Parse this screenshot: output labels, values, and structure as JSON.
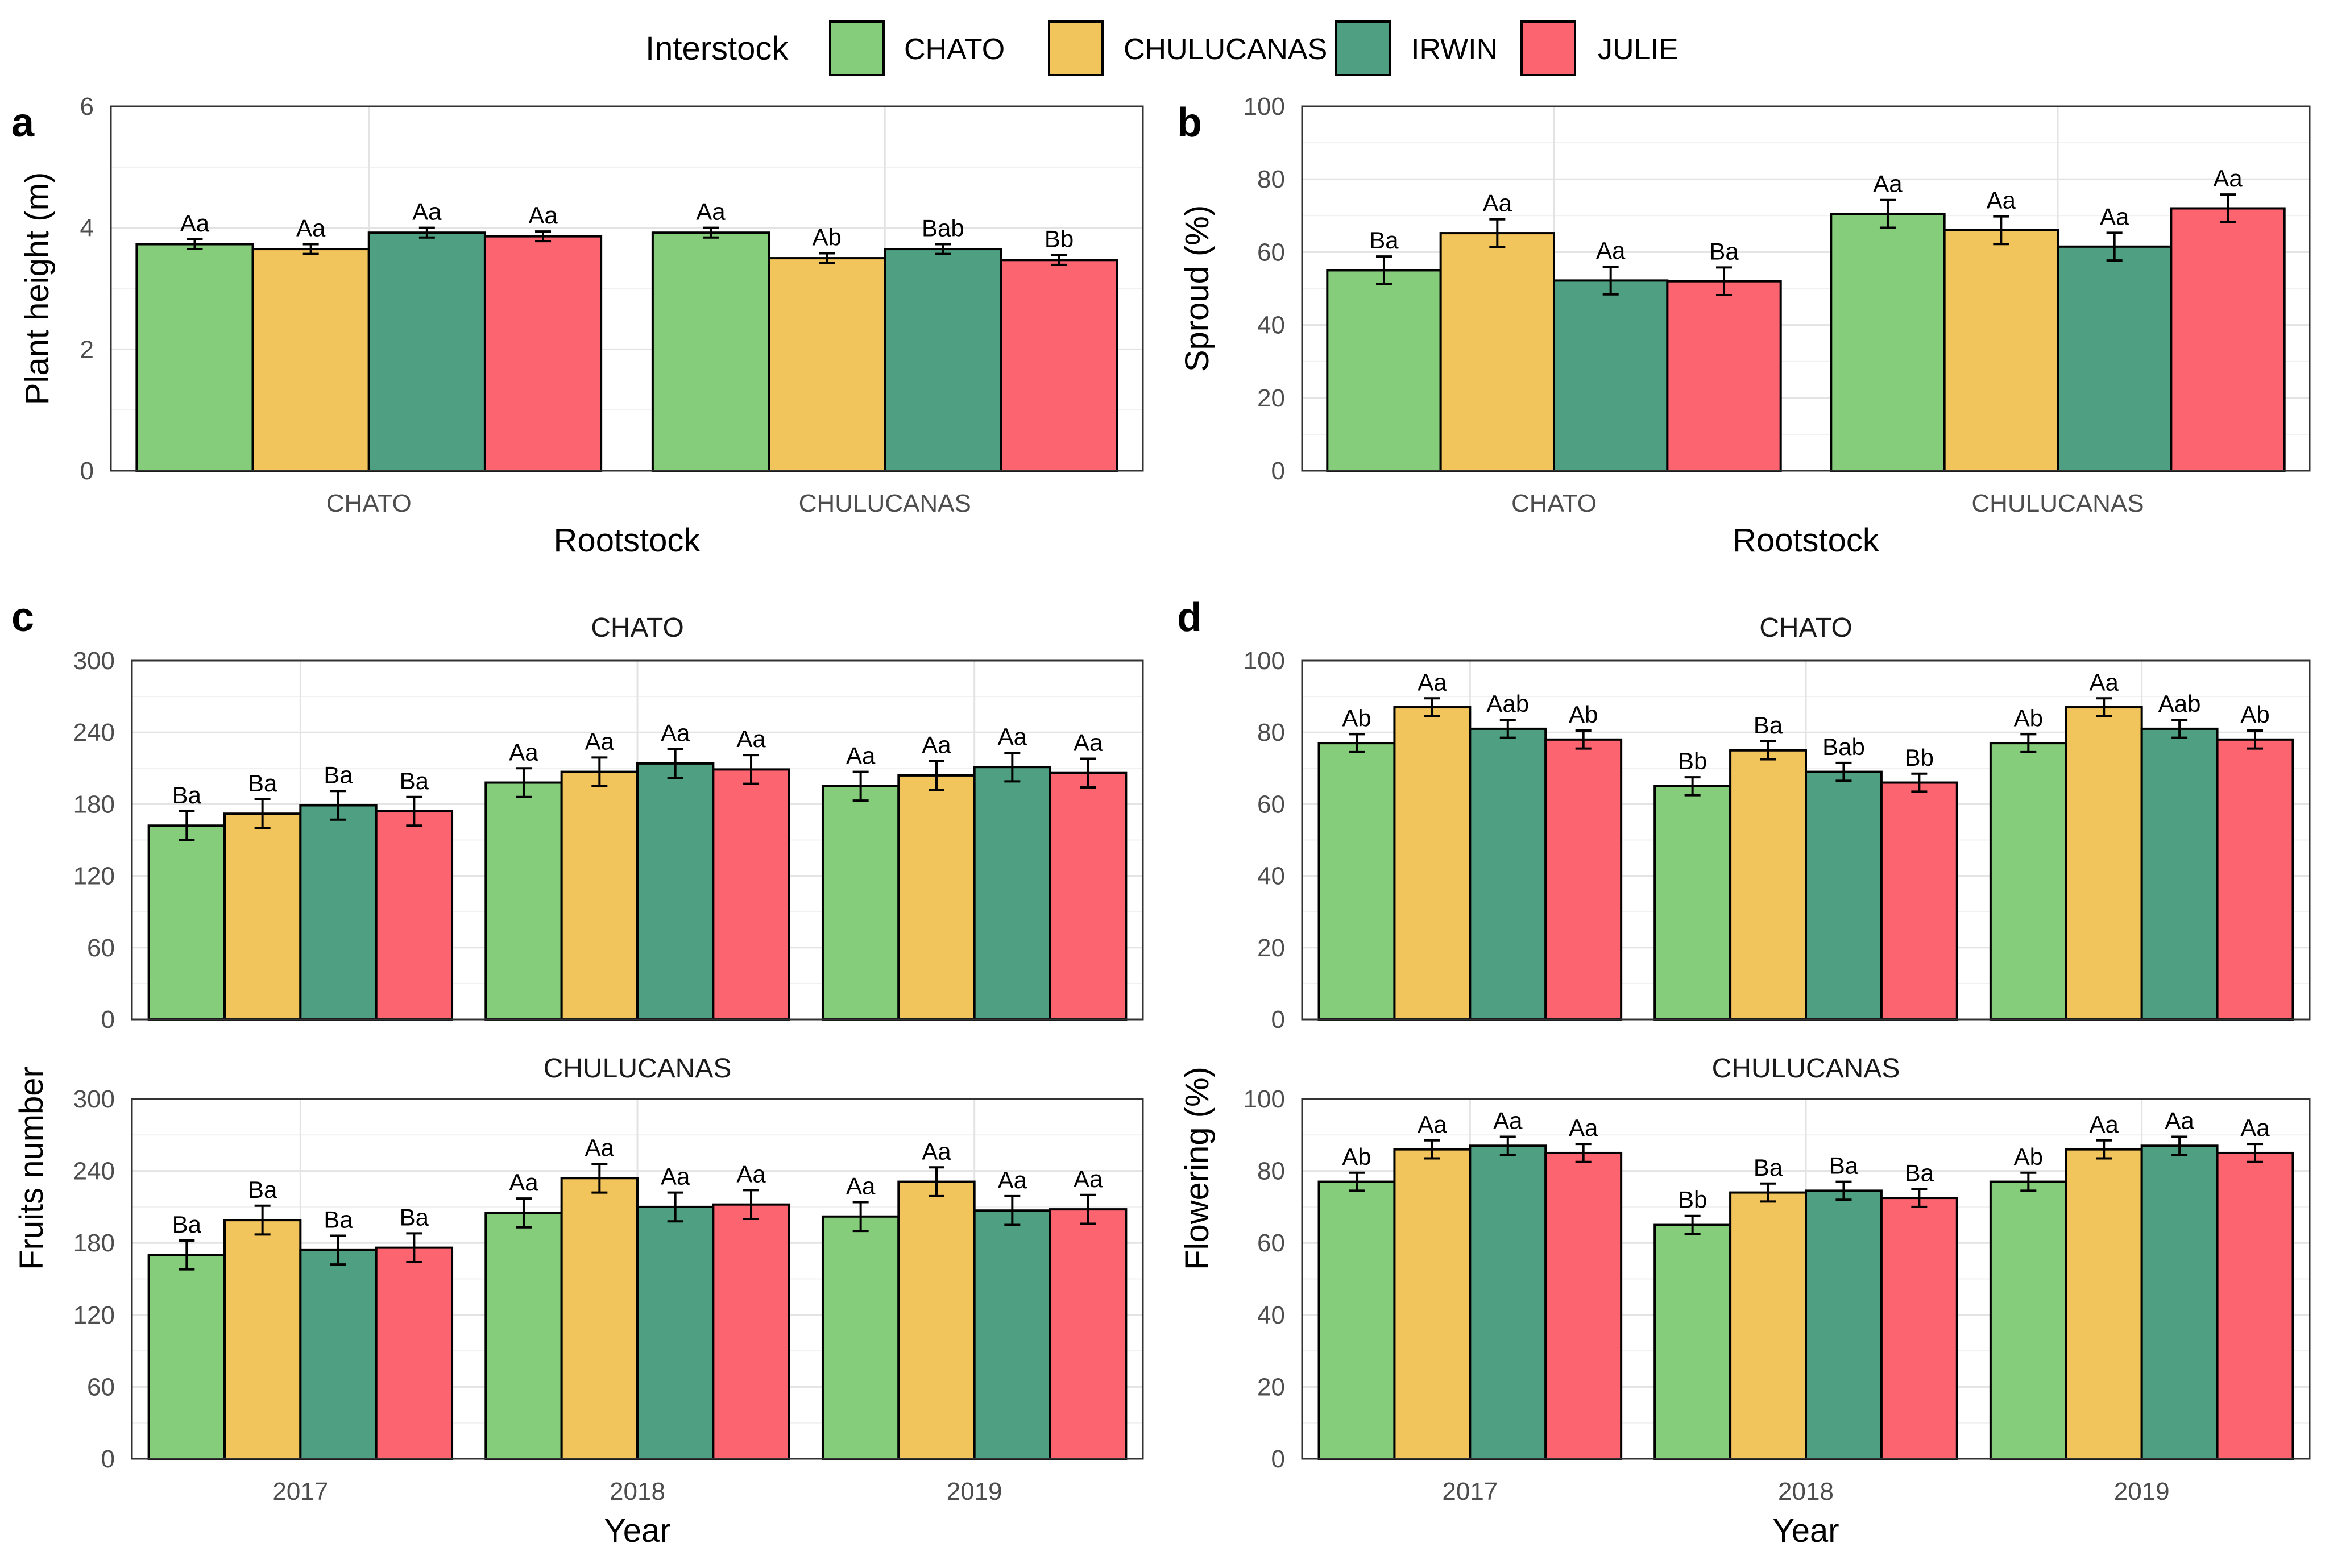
{
  "legend": {
    "title": "Interstock",
    "items": [
      {
        "label": "CHATO",
        "color": "#85CD7A"
      },
      {
        "label": "CHULUCANAS",
        "color": "#F2C45C"
      },
      {
        "label": "IRWIN",
        "color": "#4FA083"
      },
      {
        "label": "JULIE",
        "color": "#FC6470"
      }
    ]
  },
  "chart_data": [
    {
      "id": "a",
      "letter": "a",
      "type": "bar",
      "xlabel": "Rootstock",
      "ylabel": "Plant height (m)",
      "ylim": [
        0,
        6
      ],
      "yticks": [
        0,
        2,
        4,
        6
      ],
      "categories": [
        "CHATO",
        "CHULUCANAS"
      ],
      "series": [
        {
          "name": "CHATO",
          "values": [
            3.73,
            3.92
          ],
          "errors": [
            0.08,
            0.08
          ],
          "labels": [
            "Aa",
            "Aa"
          ]
        },
        {
          "name": "CHULUCANAS",
          "values": [
            3.65,
            3.5
          ],
          "errors": [
            0.08,
            0.08
          ],
          "labels": [
            "Aa",
            "Ab"
          ]
        },
        {
          "name": "IRWIN",
          "values": [
            3.92,
            3.65
          ],
          "errors": [
            0.08,
            0.08
          ],
          "labels": [
            "Aa",
            "Bab"
          ]
        },
        {
          "name": "JULIE",
          "values": [
            3.86,
            3.47
          ],
          "errors": [
            0.08,
            0.08
          ],
          "labels": [
            "Aa",
            "Bb"
          ]
        }
      ]
    },
    {
      "id": "b",
      "letter": "b",
      "type": "bar",
      "xlabel": "Rootstock",
      "ylabel": "Sproud (%)",
      "ylim": [
        0,
        100
      ],
      "yticks": [
        0,
        20,
        40,
        60,
        80,
        100
      ],
      "categories": [
        "CHATO",
        "CHULUCANAS"
      ],
      "series": [
        {
          "name": "CHATO",
          "values": [
            55,
            70.5
          ],
          "errors": [
            3.8,
            3.8
          ],
          "labels": [
            "Ba",
            "Aa"
          ]
        },
        {
          "name": "CHULUCANAS",
          "values": [
            65.2,
            66
          ],
          "errors": [
            3.8,
            3.8
          ],
          "labels": [
            "Aa",
            "Aa"
          ]
        },
        {
          "name": "IRWIN",
          "values": [
            52.2,
            61.5
          ],
          "errors": [
            3.8,
            3.8
          ],
          "labels": [
            "Aa",
            "Aa"
          ]
        },
        {
          "name": "JULIE",
          "values": [
            52,
            72
          ],
          "errors": [
            3.8,
            3.8
          ],
          "labels": [
            "Ba",
            "Aa"
          ]
        }
      ]
    },
    {
      "id": "c1",
      "letter": "c",
      "strip": "CHATO",
      "type": "bar",
      "xlabel": "",
      "ylabel": "Fruits number",
      "ylim": [
        0,
        300
      ],
      "yticks": [
        0,
        60,
        120,
        180,
        240,
        300
      ],
      "categories": [
        "2017",
        "2018",
        "2019"
      ],
      "series": [
        {
          "name": "CHATO",
          "values": [
            162,
            198,
            195
          ],
          "errors": [
            12,
            12,
            12
          ],
          "labels": [
            "Ba",
            "Aa",
            "Aa"
          ]
        },
        {
          "name": "CHULUCANAS",
          "values": [
            172,
            207,
            204
          ],
          "errors": [
            12,
            12,
            12
          ],
          "labels": [
            "Ba",
            "Aa",
            "Aa"
          ]
        },
        {
          "name": "IRWIN",
          "values": [
            179,
            214,
            211
          ],
          "errors": [
            12,
            12,
            12
          ],
          "labels": [
            "Ba",
            "Aa",
            "Aa"
          ]
        },
        {
          "name": "JULIE",
          "values": [
            174,
            209,
            206
          ],
          "errors": [
            12,
            12,
            12
          ],
          "labels": [
            "Ba",
            "Aa",
            "Aa"
          ]
        }
      ]
    },
    {
      "id": "c2",
      "strip": "CHULUCANAS",
      "type": "bar",
      "xlabel": "Year",
      "ylabel": "",
      "ylim": [
        0,
        300
      ],
      "yticks": [
        0,
        60,
        120,
        180,
        240,
        300
      ],
      "categories": [
        "2017",
        "2018",
        "2019"
      ],
      "series": [
        {
          "name": "CHATO",
          "values": [
            170,
            205,
            202
          ],
          "errors": [
            12,
            12,
            12
          ],
          "labels": [
            "Ba",
            "Aa",
            "Aa"
          ]
        },
        {
          "name": "CHULUCANAS",
          "values": [
            199,
            234,
            231
          ],
          "errors": [
            12,
            12,
            12
          ],
          "labels": [
            "Ba",
            "Aa",
            "Aa"
          ]
        },
        {
          "name": "IRWIN",
          "values": [
            174,
            210,
            207
          ],
          "errors": [
            12,
            12,
            12
          ],
          "labels": [
            "Ba",
            "Aa",
            "Aa"
          ]
        },
        {
          "name": "JULIE",
          "values": [
            176,
            212,
            208
          ],
          "errors": [
            12,
            12,
            12
          ],
          "labels": [
            "Ba",
            "Aa",
            "Aa"
          ]
        }
      ]
    },
    {
      "id": "d1",
      "letter": "d",
      "strip": "CHATO",
      "type": "bar",
      "xlabel": "",
      "ylabel": "Flowering (%)",
      "ylim": [
        0,
        100
      ],
      "yticks": [
        0,
        20,
        40,
        60,
        80,
        100
      ],
      "categories": [
        "2017",
        "2018",
        "2019"
      ],
      "series": [
        {
          "name": "CHATO",
          "values": [
            77,
            65,
            77
          ],
          "errors": [
            2.5,
            2.5,
            2.5
          ],
          "labels": [
            "Ab",
            "Bb",
            "Ab"
          ]
        },
        {
          "name": "CHULUCANAS",
          "values": [
            87,
            75,
            87
          ],
          "errors": [
            2.5,
            2.5,
            2.5
          ],
          "labels": [
            "Aa",
            "Ba",
            "Aa"
          ]
        },
        {
          "name": "IRWIN",
          "values": [
            81,
            69,
            81
          ],
          "errors": [
            2.5,
            2.5,
            2.5
          ],
          "labels": [
            "Aab",
            "Bab",
            "Aab"
          ]
        },
        {
          "name": "JULIE",
          "values": [
            78,
            66,
            78
          ],
          "errors": [
            2.5,
            2.5,
            2.5
          ],
          "labels": [
            "Ab",
            "Bb",
            "Ab"
          ]
        }
      ]
    },
    {
      "id": "d2",
      "strip": "CHULUCANAS",
      "type": "bar",
      "xlabel": "Year",
      "ylabel": "",
      "ylim": [
        0,
        100
      ],
      "yticks": [
        0,
        20,
        40,
        60,
        80,
        100
      ],
      "categories": [
        "2017",
        "2018",
        "2019"
      ],
      "series": [
        {
          "name": "CHATO",
          "values": [
            77,
            65,
            77
          ],
          "errors": [
            2.5,
            2.5,
            2.5
          ],
          "labels": [
            "Ab",
            "Bb",
            "Ab"
          ]
        },
        {
          "name": "CHULUCANAS",
          "values": [
            86,
            74,
            86
          ],
          "errors": [
            2.5,
            2.5,
            2.5
          ],
          "labels": [
            "Aa",
            "Ba",
            "Aa"
          ]
        },
        {
          "name": "IRWIN",
          "values": [
            87,
            74.5,
            87
          ],
          "errors": [
            2.5,
            2.5,
            2.5
          ],
          "labels": [
            "Aa",
            "Ba",
            "Aa"
          ]
        },
        {
          "name": "JULIE",
          "values": [
            85,
            72.5,
            85
          ],
          "errors": [
            2.5,
            2.5,
            2.5
          ],
          "labels": [
            "Aa",
            "Ba",
            "Aa"
          ]
        }
      ]
    }
  ]
}
